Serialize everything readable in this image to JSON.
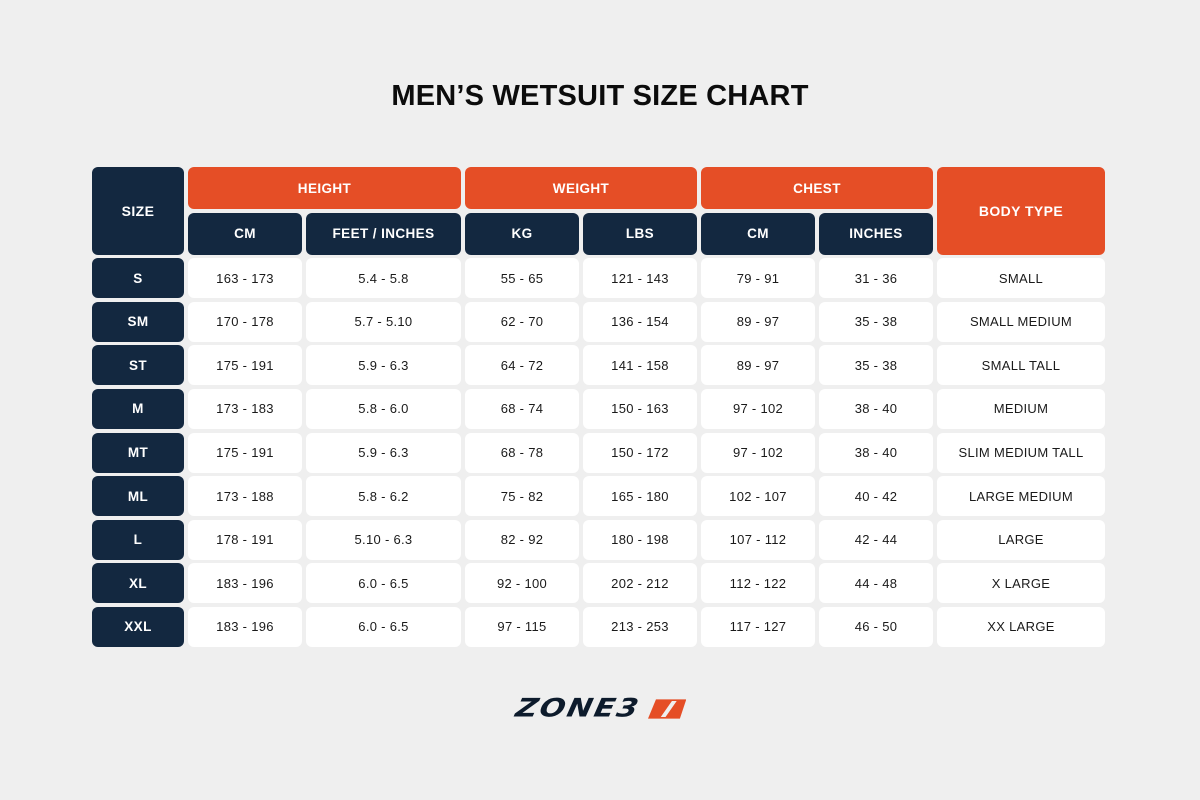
{
  "title": "MEN’S WETSUIT SIZE CHART",
  "header": {
    "size": "SIZE",
    "groups": {
      "height": "HEIGHT",
      "weight": "WEIGHT",
      "chest": "CHEST"
    },
    "body_type": "BODY TYPE",
    "sub": [
      "CM",
      "FEET / INCHES",
      "KG",
      "LBS",
      "CM",
      "INCHES"
    ]
  },
  "rows": [
    {
      "size": "S",
      "height_cm": "163 - 173",
      "height_ft": "5.4 - 5.8",
      "weight_kg": "55 - 65",
      "weight_lbs": "121 - 143",
      "chest_cm": "79 - 91",
      "chest_in": "31 - 36",
      "body_type": "SMALL"
    },
    {
      "size": "SM",
      "height_cm": "170 - 178",
      "height_ft": "5.7 - 5.10",
      "weight_kg": "62 - 70",
      "weight_lbs": "136 - 154",
      "chest_cm": "89 - 97",
      "chest_in": "35 - 38",
      "body_type": "SMALL MEDIUM"
    },
    {
      "size": "ST",
      "height_cm": "175 - 191",
      "height_ft": "5.9 - 6.3",
      "weight_kg": "64 - 72",
      "weight_lbs": "141 - 158",
      "chest_cm": "89 - 97",
      "chest_in": "35 - 38",
      "body_type": "SMALL TALL"
    },
    {
      "size": "M",
      "height_cm": "173 - 183",
      "height_ft": "5.8 - 6.0",
      "weight_kg": "68 - 74",
      "weight_lbs": "150 - 163",
      "chest_cm": "97 - 102",
      "chest_in": "38 - 40",
      "body_type": "MEDIUM"
    },
    {
      "size": "MT",
      "height_cm": "175 - 191",
      "height_ft": "5.9 - 6.3",
      "weight_kg": "68 - 78",
      "weight_lbs": "150 - 172",
      "chest_cm": "97 - 102",
      "chest_in": "38 - 40",
      "body_type": "SLIM MEDIUM TALL"
    },
    {
      "size": "ML",
      "height_cm": "173 - 188",
      "height_ft": "5.8 - 6.2",
      "weight_kg": "75 - 82",
      "weight_lbs": "165 - 180",
      "chest_cm": "102 - 107",
      "chest_in": "40 - 42",
      "body_type": "LARGE MEDIUM"
    },
    {
      "size": "L",
      "height_cm": "178 - 191",
      "height_ft": "5.10 - 6.3",
      "weight_kg": "82 - 92",
      "weight_lbs": "180 - 198",
      "chest_cm": "107 - 112",
      "chest_in": "42 - 44",
      "body_type": "LARGE"
    },
    {
      "size": "XL",
      "height_cm": "183 - 196",
      "height_ft": "6.0 - 6.5",
      "weight_kg": "92 - 100",
      "weight_lbs": "202 - 212",
      "chest_cm": "112 - 122",
      "chest_in": "44 - 48",
      "body_type": "X LARGE"
    },
    {
      "size": "XXL",
      "height_cm": "183 - 196",
      "height_ft": "6.0 - 6.5",
      "weight_kg": "97 - 115",
      "weight_lbs": "213 - 253",
      "chest_cm": "117 - 127",
      "chest_in": "46 - 50",
      "body_type": "XX LARGE"
    }
  ],
  "logo": {
    "text": "ZONE3",
    "icon": "zone3-slash-logo-icon"
  },
  "colors": {
    "navy": "#132840",
    "orange": "#e54e26",
    "background": "#efefef",
    "cell": "#ffffff"
  },
  "chart_data": {
    "type": "table",
    "title": "MEN’S WETSUIT SIZE CHART",
    "column_groups": [
      {
        "name": "SIZE",
        "columns": [
          "SIZE"
        ]
      },
      {
        "name": "HEIGHT",
        "columns": [
          "CM",
          "FEET / INCHES"
        ]
      },
      {
        "name": "WEIGHT",
        "columns": [
          "KG",
          "LBS"
        ]
      },
      {
        "name": "CHEST",
        "columns": [
          "CM",
          "INCHES"
        ]
      },
      {
        "name": "BODY TYPE",
        "columns": [
          "BODY TYPE"
        ]
      }
    ],
    "columns": [
      "SIZE",
      "HEIGHT CM",
      "HEIGHT FEET / INCHES",
      "WEIGHT KG",
      "WEIGHT LBS",
      "CHEST CM",
      "CHEST INCHES",
      "BODY TYPE"
    ],
    "rows": [
      [
        "S",
        "163 - 173",
        "5.4 - 5.8",
        "55 - 65",
        "121 - 143",
        "79 - 91",
        "31 - 36",
        "SMALL"
      ],
      [
        "SM",
        "170 - 178",
        "5.7 - 5.10",
        "62 - 70",
        "136 - 154",
        "89 - 97",
        "35 - 38",
        "SMALL MEDIUM"
      ],
      [
        "ST",
        "175 - 191",
        "5.9 - 6.3",
        "64 - 72",
        "141 - 158",
        "89 - 97",
        "35 - 38",
        "SMALL TALL"
      ],
      [
        "M",
        "173 - 183",
        "5.8 - 6.0",
        "68 - 74",
        "150 - 163",
        "97 - 102",
        "38 - 40",
        "MEDIUM"
      ],
      [
        "MT",
        "175 - 191",
        "5.9 - 6.3",
        "68 - 78",
        "150 - 172",
        "97 - 102",
        "38 - 40",
        "SLIM MEDIUM TALL"
      ],
      [
        "ML",
        "173 - 188",
        "5.8 - 6.2",
        "75 - 82",
        "165 - 180",
        "102 - 107",
        "40 - 42",
        "LARGE MEDIUM"
      ],
      [
        "L",
        "178 - 191",
        "5.10 - 6.3",
        "82 - 92",
        "180 - 198",
        "107 - 112",
        "42 - 44",
        "LARGE"
      ],
      [
        "XL",
        "183 - 196",
        "6.0 - 6.5",
        "92 - 100",
        "202 - 212",
        "112 - 122",
        "44 - 48",
        "X LARGE"
      ],
      [
        "XXL",
        "183 - 196",
        "6.0 - 6.5",
        "97 - 115",
        "213 - 253",
        "117 - 127",
        "46 - 50",
        "XX LARGE"
      ]
    ]
  }
}
